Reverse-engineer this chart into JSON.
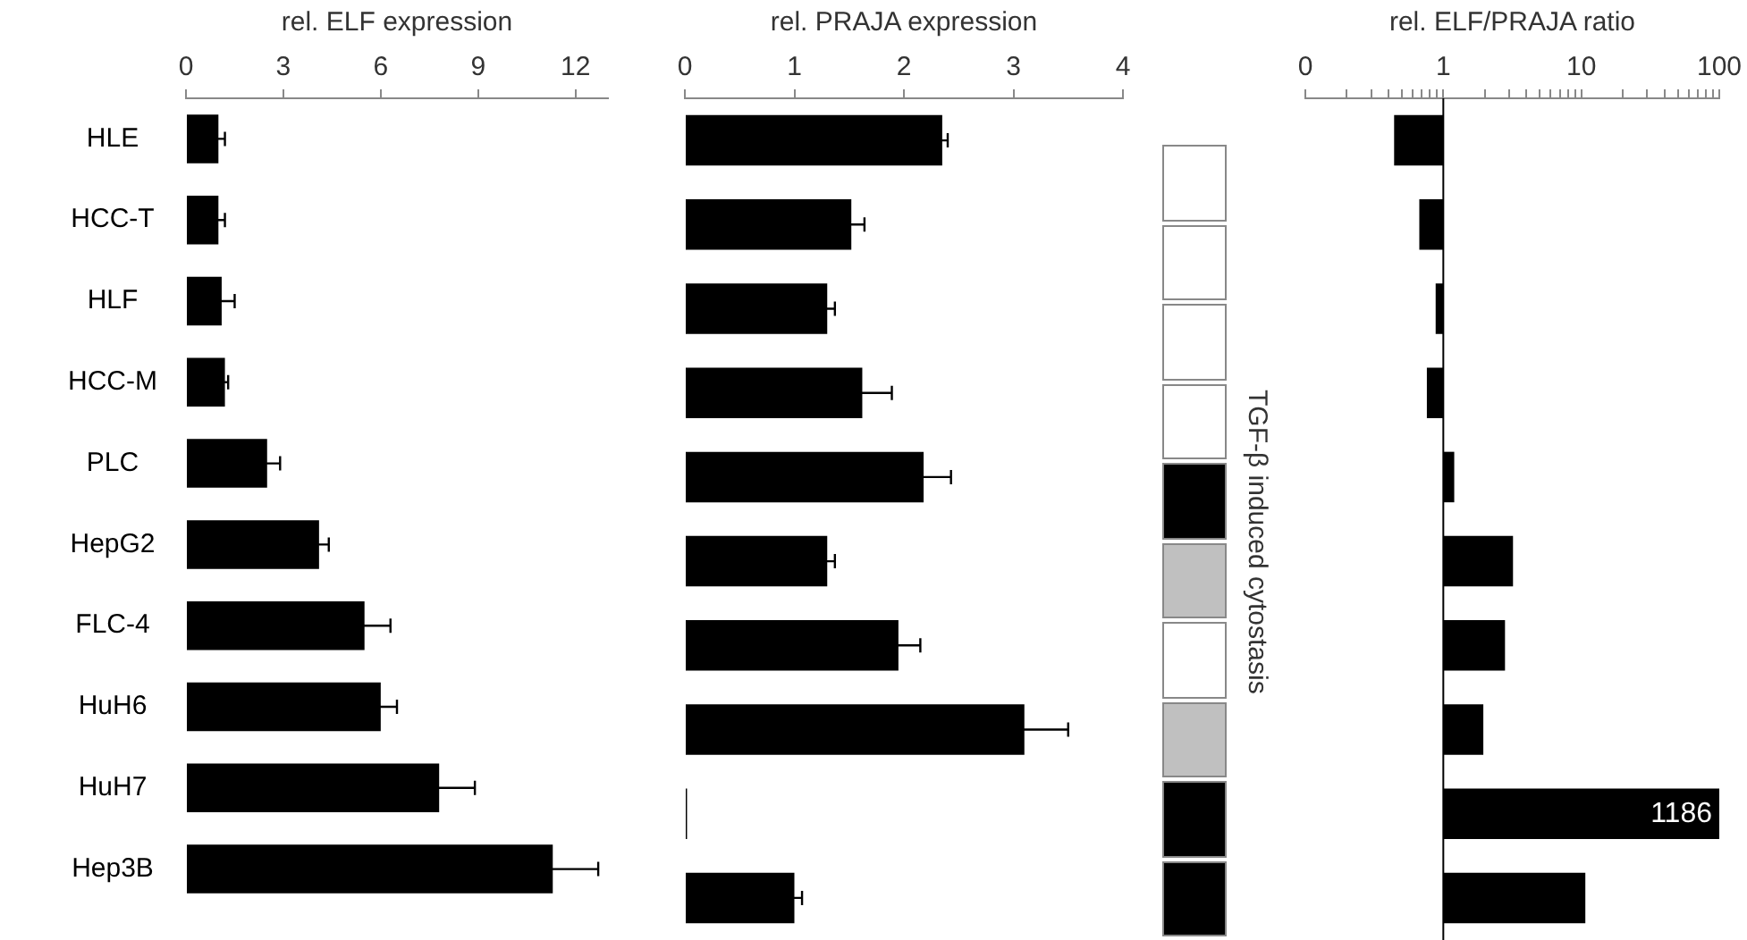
{
  "chart_data": [
    {
      "type": "bar",
      "orientation": "horizontal",
      "xlabel": "rel. ELF expression",
      "categories": [
        "HLE",
        "HCC-T",
        "HLF",
        "HCC-M",
        "PLC",
        "HepG2",
        "FLC-4",
        "HuH6",
        "HuH7",
        "Hep3B"
      ],
      "values": [
        1.0,
        1.0,
        1.1,
        1.2,
        2.5,
        4.1,
        5.5,
        6.0,
        7.8,
        11.3
      ],
      "errors": [
        0.2,
        0.2,
        0.4,
        0.1,
        0.4,
        0.3,
        0.8,
        0.5,
        1.1,
        1.4
      ],
      "color": "#000000",
      "xlim": [
        0,
        13
      ],
      "xticks": [
        0,
        3,
        6,
        9,
        12
      ],
      "grid": false,
      "legend": false
    },
    {
      "type": "bar",
      "orientation": "horizontal",
      "xlabel": "rel. PRAJA expression",
      "categories": [
        null,
        null,
        null,
        null,
        null,
        null,
        null,
        null,
        null,
        null
      ],
      "values": [
        2.35,
        1.52,
        1.3,
        1.62,
        2.18,
        1.3,
        1.95,
        3.1,
        0.02,
        1.0
      ],
      "errors": [
        0.05,
        0.12,
        0.07,
        0.27,
        0.25,
        0.07,
        0.2,
        0.4,
        null,
        0.07
      ],
      "color": "#000000",
      "xlim": [
        0,
        4
      ],
      "xticks": [
        0,
        1,
        2,
        3,
        4
      ],
      "tick_labels": "x",
      "grid": false,
      "legend": false
    },
    {
      "type": "other",
      "ylabel": "TGF-β induced cytostasis",
      "colors": [
        "#ffffff",
        "#ffffff",
        "#ffffff",
        "#ffffff",
        "#000000",
        "#c0c0c0",
        "#ffffff",
        "#c0c0c0",
        "#000000",
        "#000000"
      ]
    },
    {
      "type": "bar",
      "orientation": "horizontal",
      "xlabel": "rel. ELF/PRAJA ratio",
      "categories": [
        null,
        null,
        null,
        null,
        null,
        null,
        null,
        null,
        null,
        null
      ],
      "base": [
        1,
        1,
        1,
        1,
        1,
        1,
        1,
        1,
        1,
        1
      ],
      "values": [
        -0.56,
        -0.33,
        -0.12,
        -0.24,
        0.2,
        2.2,
        1.8,
        0.95,
        1185,
        9.7
      ],
      "value_labels": [
        null,
        null,
        null,
        null,
        null,
        null,
        null,
        null,
        "1186",
        null
      ],
      "color": "#000000",
      "log": "x",
      "xlim": [
        0.1,
        100
      ],
      "xticks": [
        {
          "value": 0.1,
          "label": "0"
        },
        {
          "value": 0.2,
          "label": null
        },
        {
          "value": 0.3,
          "label": null
        },
        {
          "value": 0.4,
          "label": null
        },
        {
          "value": 0.5,
          "label": null
        },
        {
          "value": 0.6,
          "label": null
        },
        {
          "value": 0.7,
          "label": null
        },
        {
          "value": 0.8,
          "label": null
        },
        {
          "value": 0.9,
          "label": null
        },
        1,
        {
          "value": 2,
          "label": null
        },
        {
          "value": 3,
          "label": null
        },
        {
          "value": 4,
          "label": null
        },
        {
          "value": 5,
          "label": null
        },
        {
          "value": 6,
          "label": null
        },
        {
          "value": 7,
          "label": null
        },
        {
          "value": 8,
          "label": null
        },
        {
          "value": 9,
          "label": null
        },
        10,
        {
          "value": 20,
          "label": null
        },
        {
          "value": 30,
          "label": null
        },
        {
          "value": 40,
          "label": null
        },
        {
          "value": 50,
          "label": null
        },
        {
          "value": 60,
          "label": null
        },
        {
          "value": 70,
          "label": null
        },
        {
          "value": 80,
          "label": null
        },
        {
          "value": 90,
          "label": null
        },
        100
      ],
      "tick_labels": "x",
      "grid": false,
      "legend": false,
      "ref_lines": [
        {
          "axis": "x",
          "value": 1,
          "color": "#000000"
        }
      ]
    }
  ]
}
